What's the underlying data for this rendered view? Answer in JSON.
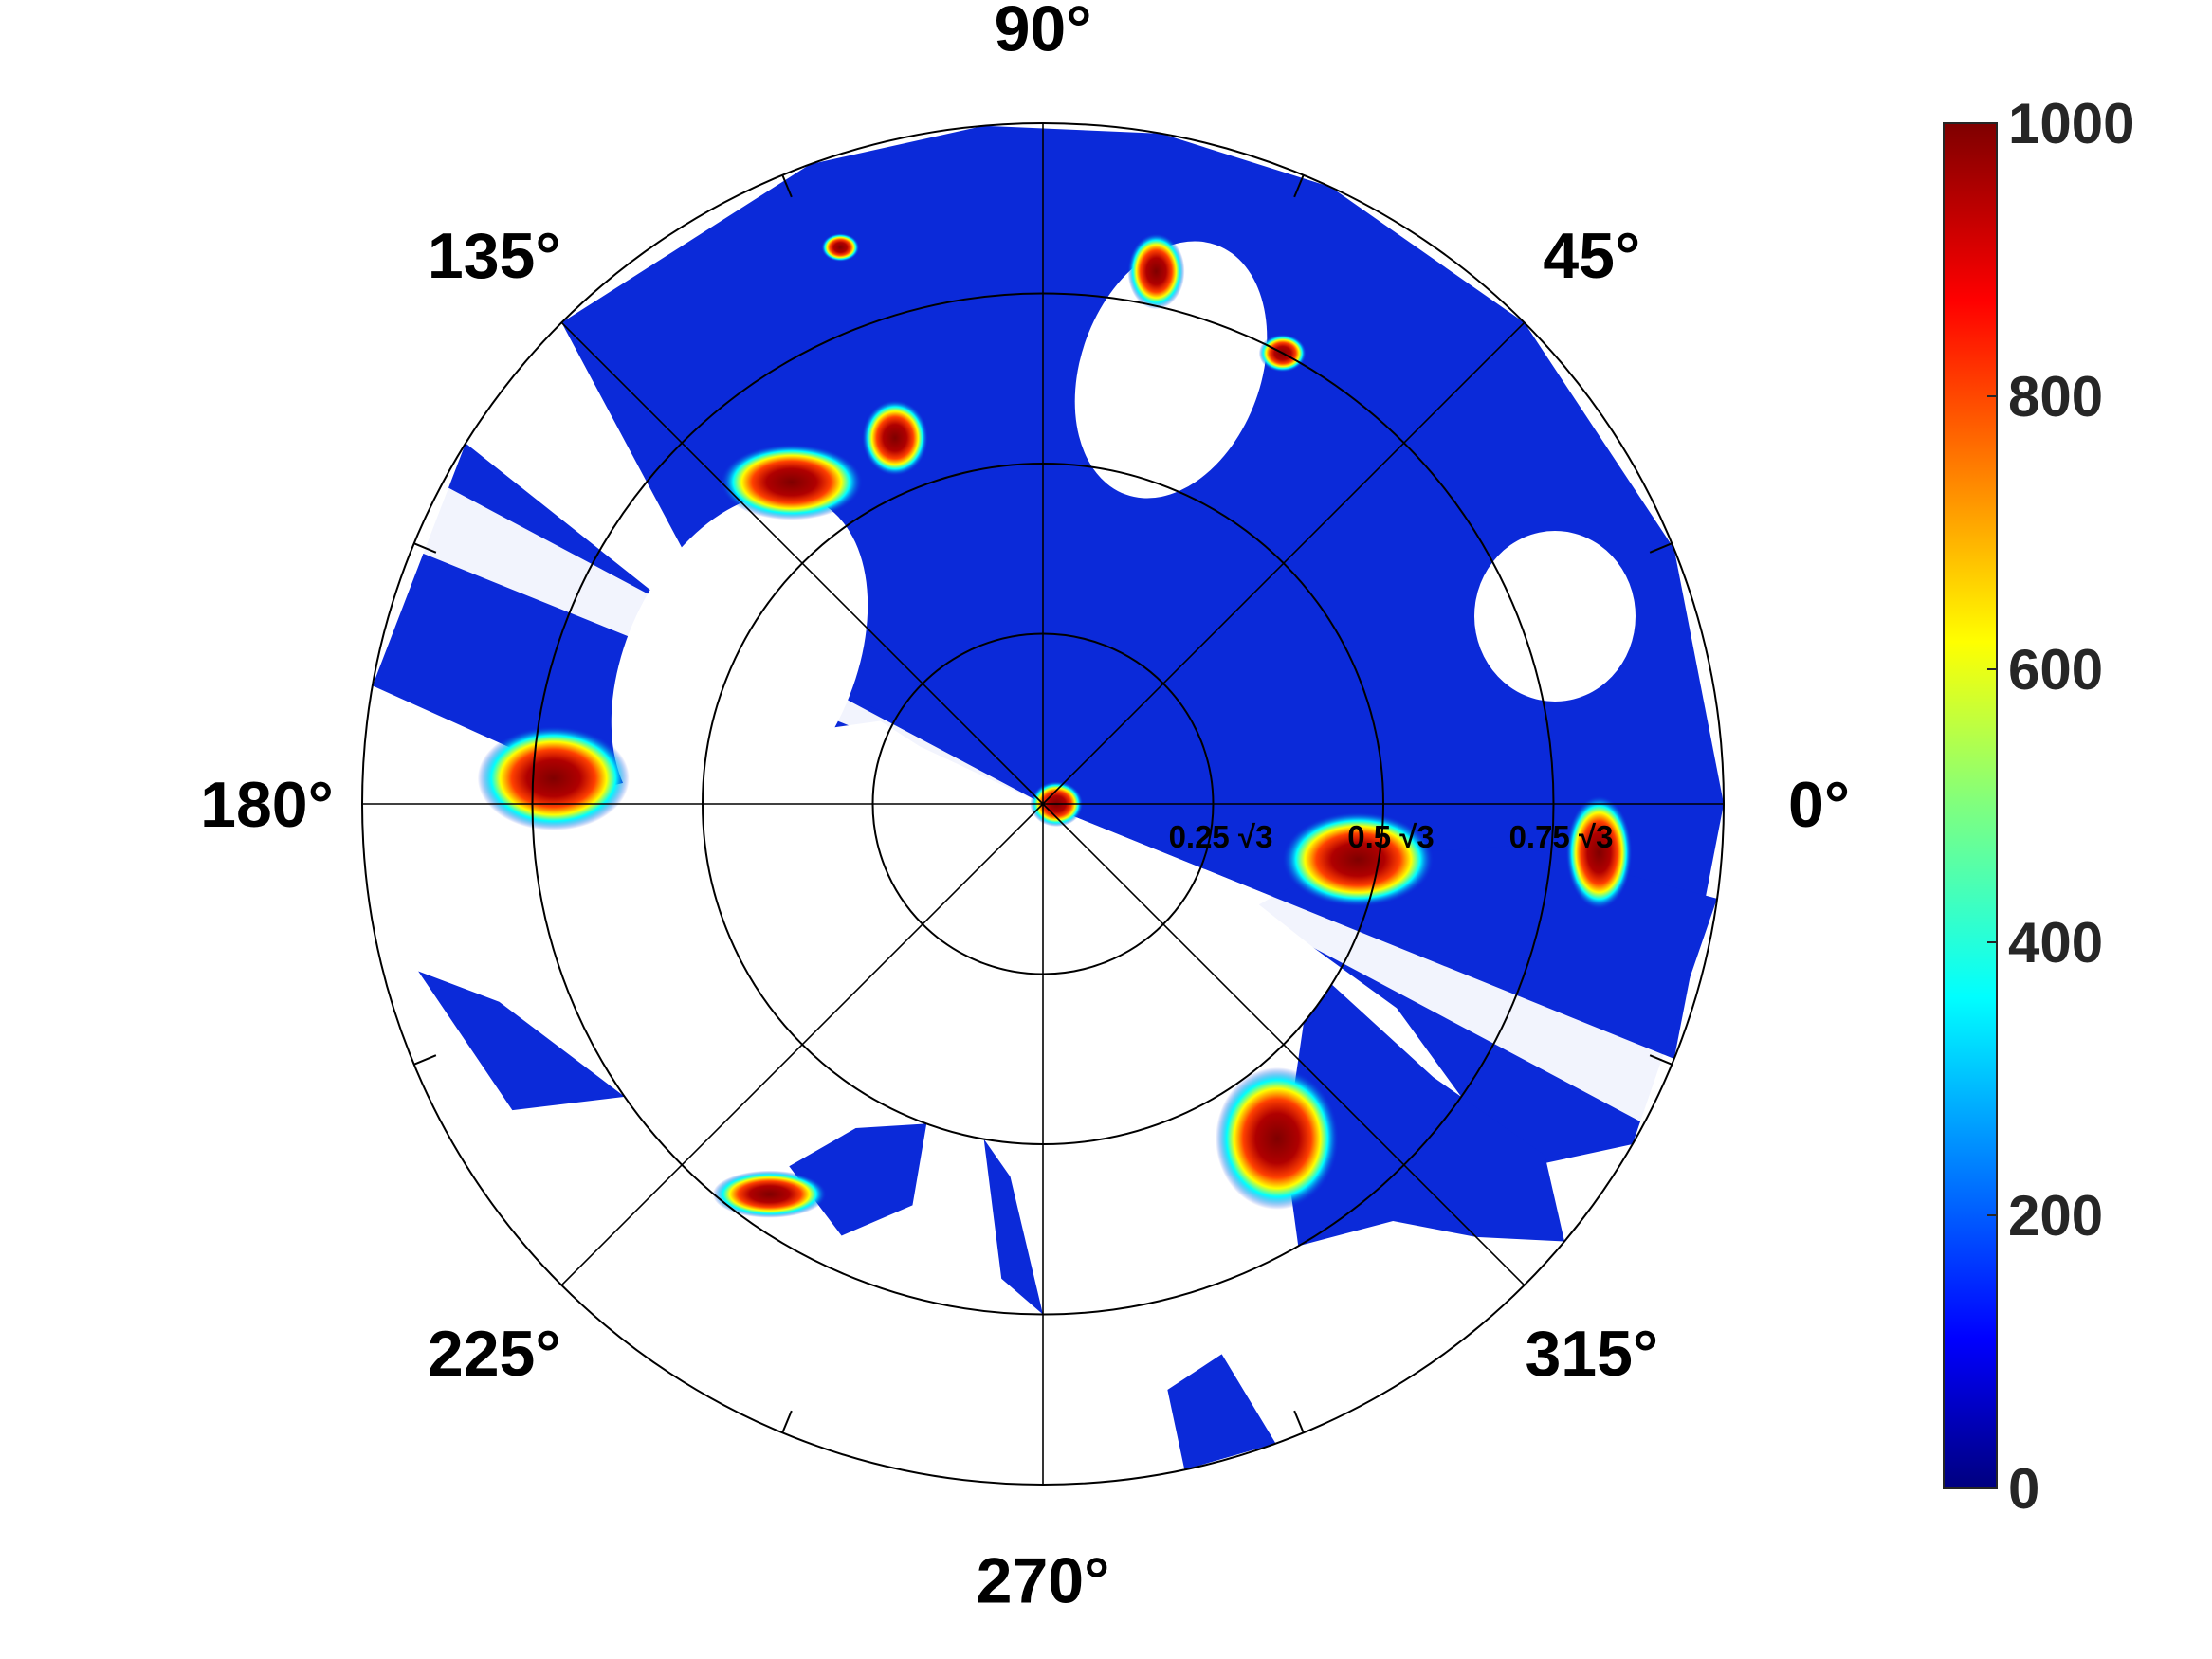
{
  "chart_data": {
    "type": "heatmap",
    "projection": "polar",
    "title": "",
    "angular_ticks": [
      "0°",
      "45°",
      "90°",
      "135°",
      "180°",
      "225°",
      "270°",
      "315°"
    ],
    "radial_ticks": [
      "0.25 √3",
      "0.5 √3",
      "0.75 √3"
    ],
    "radial_values": [
      0.25,
      0.5,
      0.75,
      1.0
    ],
    "radial_max": 1.0,
    "grid": true,
    "colormap": "jet",
    "colorbar": {
      "ticks": [
        "0",
        "200",
        "400",
        "600",
        "800",
        "1000"
      ],
      "tick_values": [
        0,
        200,
        400,
        600,
        800,
        1000
      ],
      "limits": [
        0,
        1000
      ],
      "placement": "right"
    },
    "colors": {
      "background_fill": "#0b2ad9",
      "hot": "#7f0000",
      "grid": "#000000"
    }
  }
}
